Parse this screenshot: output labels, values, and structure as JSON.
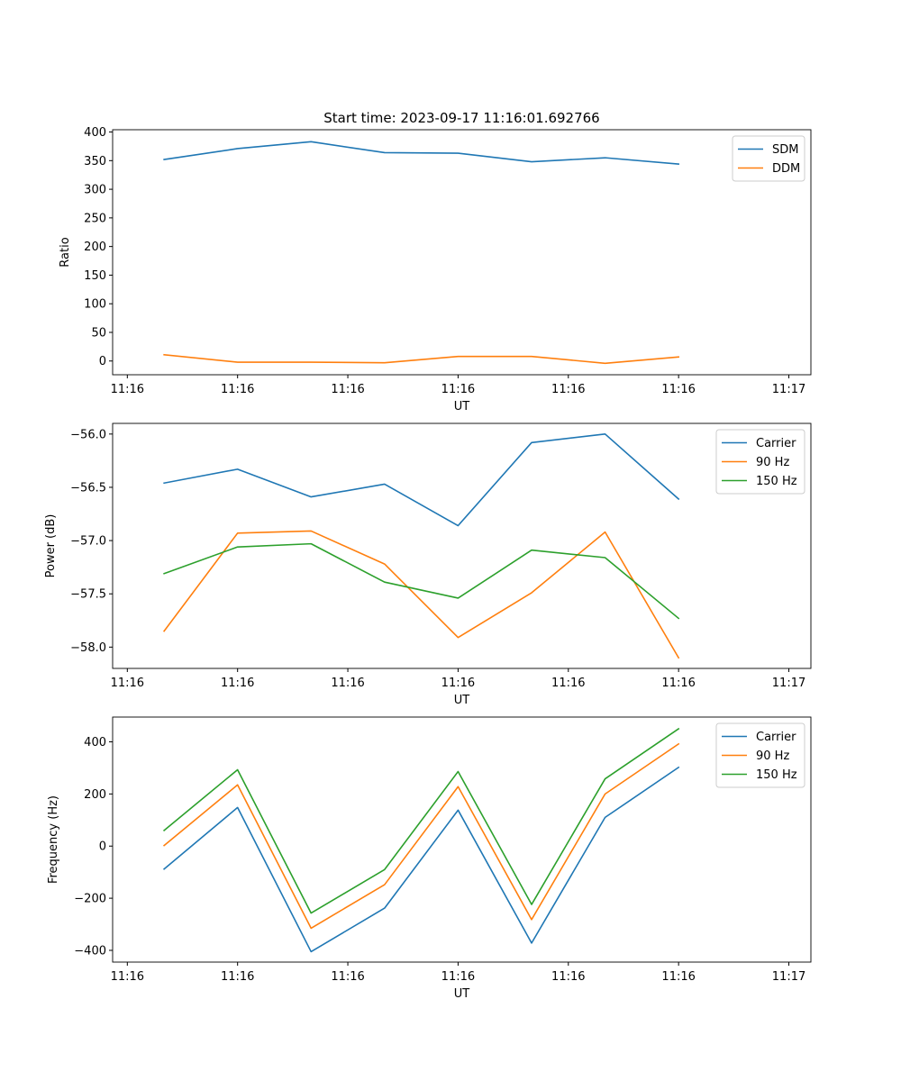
{
  "chart_data": [
    {
      "type": "line",
      "title": "Start time: 2023-09-17 11:16:01.692766",
      "xlabel": "UT",
      "ylabel": "Ratio",
      "x": [
        1,
        2,
        3,
        4,
        5,
        6,
        7,
        8
      ],
      "xlim": [
        0.3,
        9.8
      ],
      "xticks": [
        0.5,
        2.0,
        3.5,
        5.0,
        6.5,
        8.0,
        9.5
      ],
      "xtick_labels": [
        "11:16",
        "11:16",
        "11:16",
        "11:16",
        "11:16",
        "11:16",
        "11:17"
      ],
      "ylim": [
        -24,
        404
      ],
      "yticks": [
        0,
        50,
        100,
        150,
        200,
        250,
        300,
        350,
        400
      ],
      "ytick_labels": [
        "0",
        "50",
        "100",
        "150",
        "200",
        "250",
        "300",
        "350",
        "400"
      ],
      "legend": "top-right",
      "series": [
        {
          "name": "SDM",
          "color": "#1f77b4",
          "values": [
            352,
            371,
            383,
            364,
            363,
            348,
            355,
            344
          ]
        },
        {
          "name": "DDM",
          "color": "#ff7f0e",
          "values": [
            11,
            -2,
            -2,
            -3,
            8,
            8,
            -4,
            7
          ]
        }
      ]
    },
    {
      "type": "line",
      "title": "",
      "xlabel": "UT",
      "ylabel": "Power (dB)",
      "x": [
        1,
        2,
        3,
        4,
        5,
        6,
        7,
        8
      ],
      "xlim": [
        0.3,
        9.8
      ],
      "xticks": [
        0.5,
        2.0,
        3.5,
        5.0,
        6.5,
        8.0,
        9.5
      ],
      "xtick_labels": [
        "11:16",
        "11:16",
        "11:16",
        "11:16",
        "11:16",
        "11:16",
        "11:17"
      ],
      "ylim": [
        -58.2,
        -55.9
      ],
      "yticks": [
        -58.0,
        -57.5,
        -57.0,
        -56.5,
        -56.0
      ],
      "ytick_labels": [
        "−58.0",
        "−57.5",
        "−57.0",
        "−56.5",
        "−56.0"
      ],
      "legend": "top-right",
      "series": [
        {
          "name": "Carrier",
          "color": "#1f77b4",
          "values": [
            -56.46,
            -56.33,
            -56.59,
            -56.47,
            -56.86,
            -56.08,
            -56.0,
            -56.61
          ]
        },
        {
          "name": "90 Hz",
          "color": "#ff7f0e",
          "values": [
            -57.85,
            -56.93,
            -56.91,
            -57.22,
            -57.91,
            -57.49,
            -56.92,
            -58.1
          ]
        },
        {
          "name": "150 Hz",
          "color": "#2ca02c",
          "values": [
            -57.31,
            -57.06,
            -57.03,
            -57.39,
            -57.54,
            -57.09,
            -57.16,
            -57.73
          ]
        }
      ]
    },
    {
      "type": "line",
      "title": "",
      "xlabel": "UT",
      "ylabel": "Frequency (Hz)",
      "x": [
        1,
        2,
        3,
        4,
        5,
        6,
        7,
        8
      ],
      "xlim": [
        0.3,
        9.8
      ],
      "xticks": [
        0.5,
        2.0,
        3.5,
        5.0,
        6.5,
        8.0,
        9.5
      ],
      "xtick_labels": [
        "11:16",
        "11:16",
        "11:16",
        "11:16",
        "11:16",
        "11:16",
        "11:17"
      ],
      "ylim": [
        -445,
        495
      ],
      "yticks": [
        -400,
        -200,
        0,
        200,
        400
      ],
      "ytick_labels": [
        "−400",
        "−200",
        "0",
        "200",
        "400"
      ],
      "legend": "top-right",
      "series": [
        {
          "name": "Carrier",
          "color": "#1f77b4",
          "values": [
            -88,
            148,
            -405,
            -238,
            138,
            -372,
            110,
            302
          ]
        },
        {
          "name": "90 Hz",
          "color": "#ff7f0e",
          "values": [
            2,
            235,
            -315,
            -148,
            228,
            -282,
            200,
            392
          ]
        },
        {
          "name": "150 Hz",
          "color": "#2ca02c",
          "values": [
            60,
            293,
            -257,
            -90,
            286,
            -224,
            258,
            450
          ]
        }
      ]
    }
  ]
}
